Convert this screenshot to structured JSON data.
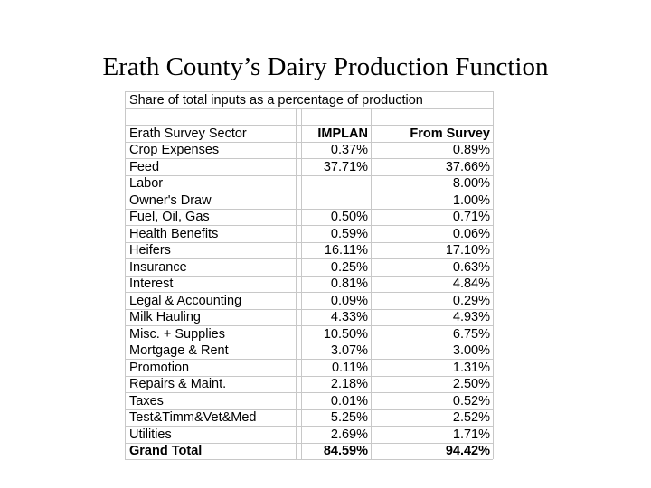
{
  "title": "Erath County’s Dairy Production Function",
  "table": {
    "caption": "Share of total inputs as a percentage of production",
    "header": [
      "Erath Survey Sector",
      "IMPLAN",
      "From Survey"
    ],
    "rows": [
      [
        "Crop Expenses",
        "0.37%",
        "0.89%"
      ],
      [
        "Feed",
        "37.71%",
        "37.66%"
      ],
      [
        "Labor",
        null,
        "8.00%"
      ],
      [
        "Owner's Draw",
        null,
        "1.00%"
      ],
      [
        "Fuel, Oil, Gas",
        "0.50%",
        "0.71%"
      ],
      [
        "Health Benefits",
        "0.59%",
        "0.06%"
      ],
      [
        "Heifers",
        "16.11%",
        "17.10%"
      ],
      [
        "Insurance",
        "0.25%",
        "0.63%"
      ],
      [
        "Interest",
        "0.81%",
        "4.84%"
      ],
      [
        "Legal & Accounting",
        "0.09%",
        "0.29%"
      ],
      [
        "Milk Hauling",
        "4.33%",
        "4.93%"
      ],
      [
        "Misc. + Supplies",
        "10.50%",
        "6.75%"
      ],
      [
        "Mortgage & Rent",
        "3.07%",
        "3.00%"
      ],
      [
        "Promotion",
        "0.11%",
        "1.31%"
      ],
      [
        "Repairs & Maint.",
        "2.18%",
        "2.50%"
      ],
      [
        "Taxes",
        "0.01%",
        "0.52%"
      ],
      [
        "Test&Timm&Vet&Med",
        "5.25%",
        "2.52%"
      ],
      [
        "Utilities",
        "2.69%",
        "1.71%"
      ]
    ],
    "total": [
      "Grand Total",
      "84.59%",
      "94.42%"
    ]
  }
}
